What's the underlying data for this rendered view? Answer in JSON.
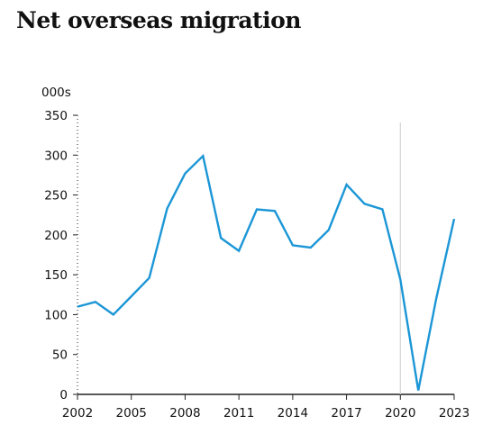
{
  "header": {
    "title": "Net overseas migration"
  },
  "chart_data": {
    "type": "line",
    "title": "Net overseas migration",
    "unit_label": "000s",
    "xlabel": "",
    "ylabel": "",
    "x": [
      2002,
      2003,
      2004,
      2005,
      2006,
      2007,
      2008,
      2009,
      2010,
      2011,
      2012,
      2013,
      2014,
      2015,
      2016,
      2017,
      2018,
      2019,
      2020,
      2021,
      2022,
      2023
    ],
    "series": [
      {
        "values": [
          110,
          116,
          100,
          123,
          146,
          233,
          277,
          299,
          196,
          180,
          232,
          230,
          187,
          184,
          206,
          263,
          239,
          232,
          144,
          5,
          120,
          220
        ]
      }
    ],
    "xlim": [
      2002,
      2023
    ],
    "ylim": [
      0,
      350
    ],
    "x_ticks": [
      2002,
      2005,
      2008,
      2011,
      2014,
      2017,
      2020,
      2023
    ],
    "x_tick_labels": [
      "2002",
      "2005",
      "2008",
      "2011",
      "2014",
      "2017",
      "2020",
      "2023"
    ],
    "y_ticks": [
      0,
      50,
      100,
      150,
      200,
      250,
      300,
      350
    ],
    "y_tick_labels": [
      "0",
      "50",
      "100",
      "150",
      "200",
      "250",
      "300",
      "350"
    ],
    "reference_line_x": 2020,
    "grid": false,
    "colors": {
      "line": "#1b96d6",
      "axis": "#222222",
      "reference": "#d4d4d4"
    }
  }
}
